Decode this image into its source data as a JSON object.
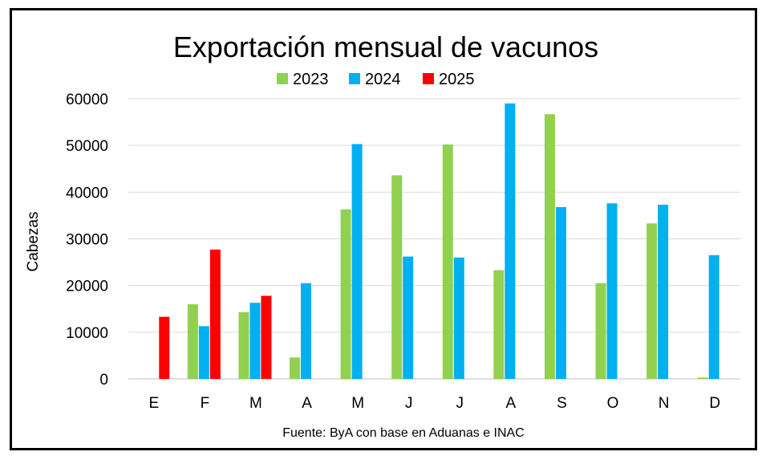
{
  "chart_data": {
    "type": "bar",
    "title": "Exportación mensual de vacunos",
    "ylabel": "Cabezas",
    "xlabel": "",
    "source": "Fuente: ByA con base en Aduanas e INAC",
    "categories": [
      "E",
      "F",
      "M",
      "A",
      "M",
      "J",
      "J",
      "A",
      "S",
      "O",
      "N",
      "D"
    ],
    "ylim": [
      0,
      60000
    ],
    "yticks": [
      0,
      10000,
      20000,
      30000,
      40000,
      50000,
      60000
    ],
    "grid": true,
    "legend_position": "top",
    "series": [
      {
        "name": "2023",
        "color": "#92D050",
        "values": [
          null,
          16000,
          14300,
          4600,
          36300,
          43600,
          50200,
          23300,
          56700,
          20500,
          33300,
          300
        ]
      },
      {
        "name": "2024",
        "color": "#00B0F0",
        "values": [
          null,
          11300,
          16300,
          20500,
          50300,
          26200,
          26000,
          59000,
          36800,
          37600,
          37300,
          26500
        ]
      },
      {
        "name": "2025",
        "color": "#FF0000",
        "values": [
          13300,
          27700,
          17800,
          null,
          null,
          null,
          null,
          null,
          null,
          null,
          null,
          null
        ]
      }
    ]
  }
}
